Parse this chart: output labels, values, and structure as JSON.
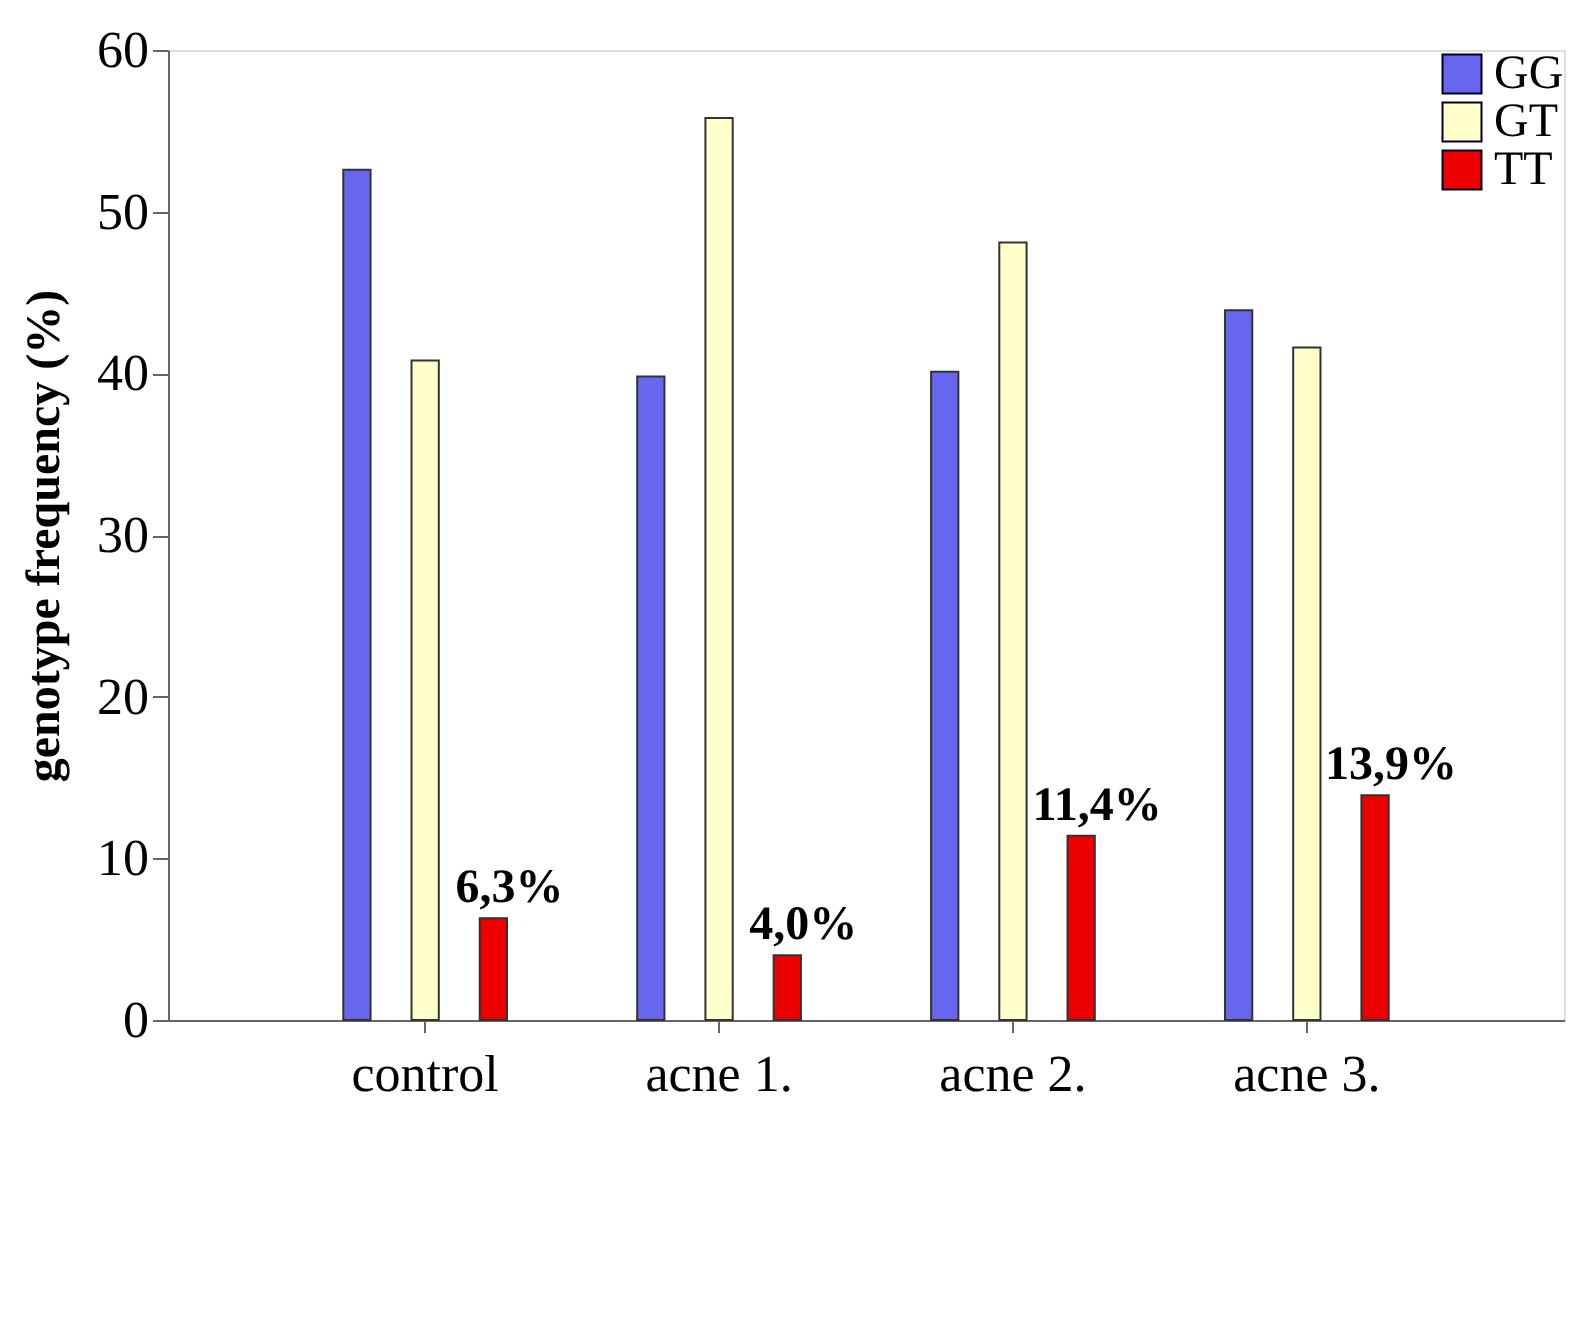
{
  "chart_data": {
    "type": "bar",
    "ylabel": "genotype frequency (%)",
    "categories": [
      "control",
      "acne 1.",
      "acne 2.",
      "acne 3."
    ],
    "series": [
      {
        "name": "GG",
        "color": "#6666ee",
        "values": [
          52.6,
          39.8,
          40.1,
          43.9
        ]
      },
      {
        "name": "GT",
        "color": "#ffffcc",
        "values": [
          40.8,
          55.8,
          48.1,
          41.6
        ]
      },
      {
        "name": "TT",
        "color": "#ee0000",
        "values": [
          6.3,
          4.0,
          11.4,
          13.9
        ],
        "value_labels": [
          "6,3%",
          "4,0%",
          "11,4%",
          "13,9%"
        ]
      }
    ],
    "ylim": [
      0,
      60
    ],
    "yticks": [
      0,
      10,
      20,
      30,
      40,
      50,
      60
    ],
    "grid": false,
    "legend": "top right"
  }
}
